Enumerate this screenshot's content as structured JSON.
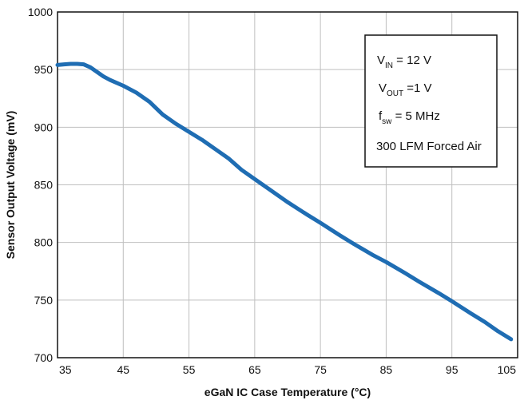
{
  "chart_data": {
    "type": "line",
    "xlabel": "eGaN IC Case Temperature (°C)",
    "ylabel": "Sensor Output Voltage (mV)",
    "xlim": [
      35,
      105
    ],
    "ylim": [
      700,
      1000
    ],
    "x_ticks": [
      35,
      45,
      55,
      65,
      75,
      85,
      95,
      105
    ],
    "y_ticks": [
      700,
      750,
      800,
      850,
      900,
      950,
      1000
    ],
    "grid": true,
    "series": [
      {
        "color": "#1f6db3",
        "x": [
          35,
          36,
          37,
          38,
          39,
          40,
          41,
          42,
          43,
          45,
          47,
          49,
          51,
          53,
          55,
          57,
          59,
          61,
          63,
          65,
          67,
          70,
          73,
          75,
          78,
          80,
          83,
          85,
          88,
          90,
          93,
          95,
          98,
          100,
          102,
          104
        ],
        "y": [
          954,
          954.5,
          955,
          955,
          954.5,
          952,
          948,
          944,
          941,
          936,
          930,
          922,
          911,
          903,
          896,
          889,
          881,
          873,
          863,
          855,
          847,
          835,
          824,
          817,
          806,
          799,
          789,
          783,
          773,
          766,
          756,
          749,
          738,
          731,
          723,
          716
        ]
      }
    ],
    "legend_box": {
      "position": "top-right",
      "lines": [
        {
          "main": "V",
          "sub": "IN",
          "rest": " = 12 V"
        },
        {
          "main": "V",
          "sub": "OUT",
          "rest": " =1 V"
        },
        {
          "main": "f",
          "sub": "sw",
          "rest": " = 5 MHz"
        },
        {
          "main": "300 LFM Forced Air",
          "sub": "",
          "rest": ""
        }
      ]
    }
  }
}
